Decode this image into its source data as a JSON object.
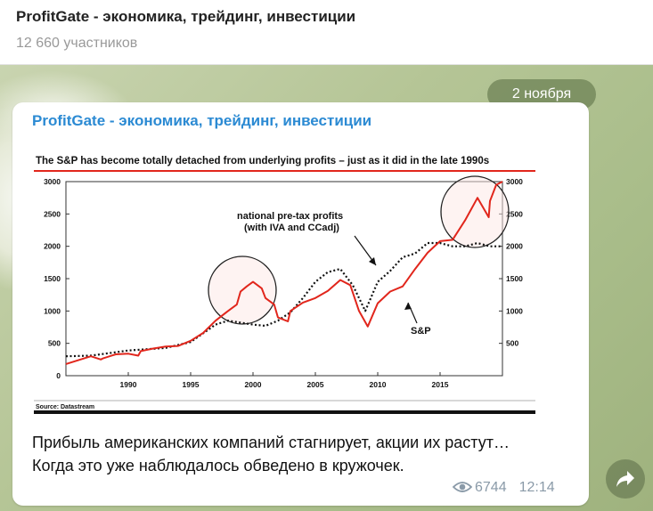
{
  "header": {
    "channel_title": "ProfitGate - экономика, трейдинг, инвестиции",
    "members": "12 660 участников"
  },
  "date_pill": "2 ноября",
  "post": {
    "channel_name": "ProfitGate - экономика, трейдинг, инвестиции",
    "text_line1": "Прибыль американских компаний стагнирует, акции их растут…",
    "text_line2": "Когда это уже наблюдалось обведено в кружочек.",
    "views": "6744",
    "time": "12:14"
  },
  "icons": {
    "views": "eye-icon",
    "share": "share-arrow-icon"
  },
  "chart_data": {
    "type": "line",
    "title": "The S&P has become totally detached from underlying profits – just as it did in the late 1990s",
    "source": "Source: Datastream",
    "xlim": [
      1985,
      2020
    ],
    "ylim": [
      0,
      3000
    ],
    "x_ticks": [
      "1990",
      "1995",
      "2000",
      "2005",
      "2010",
      "2015"
    ],
    "y_ticks_left": [
      "3000",
      "2500",
      "2000",
      "1500",
      "1000",
      "500",
      "0"
    ],
    "y_ticks_right": [
      "3000",
      "2500",
      "2000",
      "1500",
      "1000",
      "500"
    ],
    "annotations": {
      "profits_label_1": "national pre-tax profits",
      "profits_label_2": "(with IVA and CCadj)",
      "sp_label": "S&P"
    },
    "series": [
      {
        "name": "S&P",
        "color": "#e1261c",
        "style": "solid",
        "x": [
          1985,
          1986,
          1987,
          1987.8,
          1988,
          1989,
          1990,
          1990.8,
          1991,
          1992,
          1993,
          1994,
          1995,
          1996,
          1997,
          1998,
          1998.7,
          1999,
          1999.5,
          2000,
          2000.7,
          2001,
          2001.7,
          2002,
          2002.8,
          2003,
          2004,
          2005,
          2006,
          2007,
          2007.8,
          2008.5,
          2009.2,
          2010,
          2011,
          2012,
          2013,
          2014,
          2015,
          2016,
          2017,
          2018,
          2018.9,
          2019,
          2019.5,
          2020
        ],
        "values": [
          180,
          240,
          300,
          250,
          270,
          330,
          340,
          310,
          380,
          420,
          450,
          460,
          540,
          660,
          850,
          1000,
          1100,
          1300,
          1380,
          1450,
          1350,
          1200,
          1100,
          900,
          840,
          1000,
          1130,
          1200,
          1310,
          1480,
          1400,
          1000,
          760,
          1120,
          1300,
          1380,
          1650,
          1900,
          2080,
          2100,
          2400,
          2750,
          2450,
          2700,
          2950,
          3000
        ]
      },
      {
        "name": "national pre-tax profits",
        "color": "#111111",
        "style": "dotted",
        "x": [
          1985,
          1987,
          1990,
          1993,
          1995,
          1997,
          1998,
          1999,
          2000,
          2001,
          2002,
          2003,
          2004,
          2005,
          2006,
          2007,
          2008,
          2009,
          2010,
          2011,
          2012,
          2013,
          2014,
          2015,
          2016,
          2017,
          2018,
          2019,
          2020
        ],
        "values": [
          300,
          310,
          390,
          430,
          520,
          790,
          850,
          820,
          790,
          770,
          850,
          980,
          1200,
          1450,
          1600,
          1650,
          1400,
          1000,
          1450,
          1620,
          1830,
          1890,
          2050,
          2050,
          2000,
          2000,
          2050,
          2000,
          2000
        ]
      }
    ]
  }
}
